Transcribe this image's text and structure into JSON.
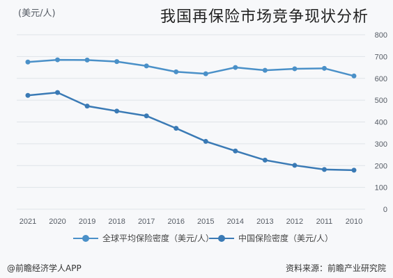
{
  "header": {
    "subtitle": "(美元/人)",
    "overlay_title": "我国再保险市场竞争现状分析"
  },
  "legend": {
    "series_a": "全球平均保险密度（美元/人）",
    "series_b": "中国保险密度（美元/人）"
  },
  "footer": {
    "left": "@前瞻经济学人APP",
    "right": "资料来源：前瞻产业研究院"
  },
  "colors": {
    "series_a": "#4a90c8",
    "series_b": "#3a7ab5",
    "grid": "#dfe3e8",
    "axis_text": "#555b64"
  },
  "chart_data": {
    "type": "line",
    "x": [
      "2021",
      "2020",
      "2019",
      "2018",
      "2017",
      "2016",
      "2015",
      "2014",
      "2013",
      "2012",
      "2011",
      "2010"
    ],
    "series": [
      {
        "name": "全球平均保险密度（美元/人）",
        "values": [
          675,
          685,
          684,
          677,
          657,
          630,
          621,
          650,
          637,
          644,
          646,
          611
        ]
      },
      {
        "name": "中国保险密度（美元/人）",
        "values": [
          522,
          535,
          473,
          450,
          428,
          371,
          311,
          267,
          225,
          201,
          182,
          179
        ]
      }
    ],
    "y_ticks": [
      0,
      100,
      200,
      300,
      400,
      500,
      600,
      700,
      800
    ],
    "y_tick_labels": [
      "0",
      "100",
      "200",
      "300",
      "400",
      "500",
      "600",
      "700",
      "800"
    ],
    "ylim": [
      0,
      800
    ],
    "y_axis_side": "right",
    "grid": true,
    "legend_position": "bottom"
  }
}
